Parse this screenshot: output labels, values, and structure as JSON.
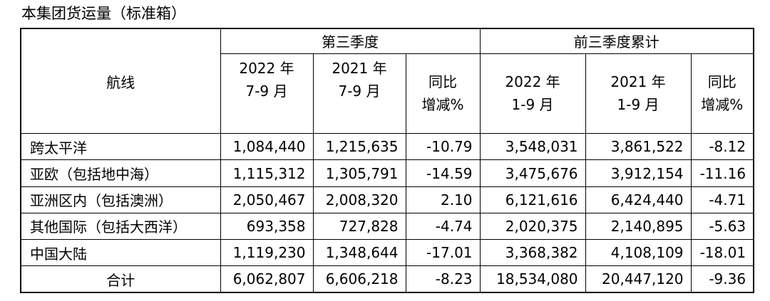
{
  "title": "本集团货运量（标准箱）",
  "table": {
    "route_header": "航线",
    "group_q3": "第三季度",
    "group_ytd": "前三季度累计",
    "sub": [
      [
        "2022 年",
        "7-9 月"
      ],
      [
        "2021 年",
        "7-9 月"
      ],
      [
        "同比",
        "增减%"
      ],
      [
        "2022 年",
        "1-9 月"
      ],
      [
        "2021 年",
        "1-9 月"
      ],
      [
        "同比",
        "增减%"
      ]
    ],
    "rows": [
      [
        "跨太平洋",
        "1,084,440",
        "1,215,635",
        "-10.79",
        "3,548,031",
        "3,861,522",
        "-8.12"
      ],
      [
        "亚欧（包括地中海）",
        "1,115,312",
        "1,305,791",
        "-14.59",
        "3,475,676",
        "3,912,154",
        "-11.16"
      ],
      [
        "亚洲区内（包括澳洲）",
        "2,050,467",
        "2,008,320",
        "2.10",
        "6,121,616",
        "6,424,440",
        "-4.71"
      ],
      [
        "其他国际（包括大西洋）",
        "693,358",
        "727,828",
        "-4.74",
        "2,020,375",
        "2,140,895",
        "-5.63"
      ],
      [
        "中国大陆",
        "1,119,230",
        "1,348,644",
        "-17.01",
        "3,368,382",
        "4,108,109",
        "-18.01"
      ],
      [
        "合计",
        "6,062,807",
        "6,606,218",
        "-8.23",
        "18,534,080",
        "20,447,120",
        "-9.36"
      ]
    ]
  }
}
